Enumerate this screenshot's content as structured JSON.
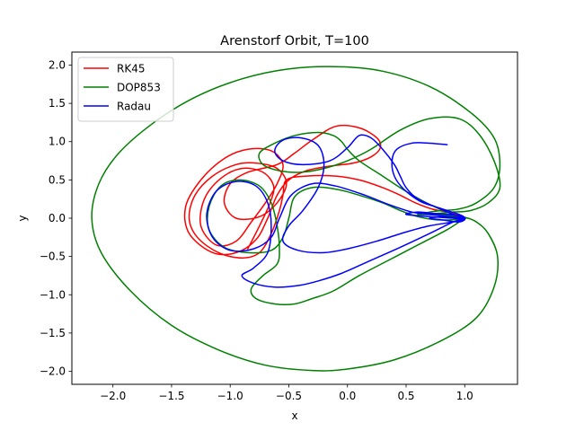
{
  "chart_data": {
    "type": "line",
    "title": "Arenstorf Orbit, T=100",
    "xlabel": "x",
    "ylabel": "y",
    "xlim": [
      -2.35,
      1.45
    ],
    "ylim": [
      -2.17,
      2.17
    ],
    "xticks": [
      -2.0,
      -1.5,
      -1.0,
      -0.5,
      0.0,
      0.5,
      1.0
    ],
    "yticks": [
      -2.0,
      -1.5,
      -1.0,
      -0.5,
      0.0,
      0.5,
      1.0,
      1.5,
      2.0
    ],
    "xtick_labels": [
      "−2.0",
      "−1.5",
      "−1.0",
      "−0.5",
      "0.0",
      "0.5",
      "1.0"
    ],
    "ytick_labels": [
      "−2.0",
      "−1.5",
      "−1.0",
      "−0.5",
      "0.0",
      "0.5",
      "1.0",
      "1.5",
      "2.0"
    ],
    "grid": false,
    "legend_position": "top-left",
    "series": [
      {
        "name": "RK45",
        "color": "#ff0000",
        "points": [
          [
            0.994,
            0.0
          ],
          [
            0.98,
            0.03
          ],
          [
            0.93,
            0.05
          ],
          [
            0.85,
            0.08
          ],
          [
            0.72,
            0.12
          ],
          [
            0.58,
            0.2
          ],
          [
            0.45,
            0.3
          ],
          [
            0.3,
            0.4
          ],
          [
            0.1,
            0.5
          ],
          [
            -0.1,
            0.55
          ],
          [
            -0.35,
            0.55
          ],
          [
            -0.52,
            0.5
          ],
          [
            -0.55,
            0.3
          ],
          [
            -0.58,
            0.1
          ],
          [
            -0.65,
            -0.2
          ],
          [
            -0.75,
            -0.45
          ],
          [
            -0.9,
            -0.52
          ],
          [
            -1.1,
            -0.45
          ],
          [
            -1.28,
            -0.25
          ],
          [
            -1.35,
            0.0
          ],
          [
            -1.3,
            0.3
          ],
          [
            -1.15,
            0.55
          ],
          [
            -0.95,
            0.7
          ],
          [
            -0.78,
            0.72
          ],
          [
            -0.6,
            0.65
          ],
          [
            -0.52,
            0.45
          ],
          [
            -0.6,
            0.2
          ],
          [
            -0.75,
            0.02
          ],
          [
            -0.95,
            0.0
          ],
          [
            -1.05,
            0.2
          ],
          [
            -1.0,
            0.45
          ],
          [
            -0.85,
            0.6
          ],
          [
            -0.6,
            0.7
          ],
          [
            -0.45,
            0.85
          ],
          [
            -0.3,
            1.02
          ],
          [
            -0.1,
            1.2
          ],
          [
            0.1,
            1.18
          ],
          [
            0.25,
            1.05
          ],
          [
            0.28,
            0.92
          ],
          [
            0.2,
            0.8
          ],
          [
            0.05,
            0.72
          ],
          [
            -0.15,
            0.68
          ],
          [
            -0.35,
            0.62
          ],
          [
            -0.5,
            0.5
          ],
          [
            -0.6,
            0.3
          ],
          [
            -0.68,
            0.0
          ],
          [
            -0.78,
            -0.28
          ],
          [
            -0.95,
            -0.45
          ],
          [
            -1.15,
            -0.45
          ],
          [
            -1.35,
            -0.2
          ],
          [
            -1.38,
            0.15
          ],
          [
            -1.25,
            0.5
          ],
          [
            -1.05,
            0.78
          ],
          [
            -0.85,
            0.9
          ],
          [
            -0.65,
            0.88
          ],
          [
            -0.55,
            0.7
          ],
          [
            -0.6,
            0.45
          ],
          [
            -0.7,
            0.2
          ],
          [
            -0.82,
            -0.05
          ],
          [
            -0.95,
            -0.3
          ],
          [
            -1.12,
            -0.35
          ],
          [
            -1.25,
            -0.1
          ],
          [
            -1.22,
            0.25
          ],
          [
            -1.08,
            0.52
          ],
          [
            -0.9,
            0.65
          ],
          [
            -0.72,
            0.6
          ],
          [
            -0.63,
            0.42
          ],
          [
            -0.66,
            0.2
          ],
          [
            -0.75,
            -0.1
          ],
          [
            -0.85,
            -0.4
          ]
        ]
      },
      {
        "name": "DOP853",
        "color": "#008000",
        "points": [
          [
            0.994,
            0.0
          ],
          [
            0.9,
            -0.02
          ],
          [
            0.75,
            -0.02
          ],
          [
            0.6,
            0.02
          ],
          [
            0.45,
            0.1
          ],
          [
            0.3,
            0.2
          ],
          [
            0.1,
            0.3
          ],
          [
            -0.1,
            0.38
          ],
          [
            -0.3,
            0.4
          ],
          [
            -0.45,
            0.28
          ],
          [
            -0.5,
            0.0
          ],
          [
            -0.55,
            -0.25
          ],
          [
            -0.65,
            -0.42
          ],
          [
            -0.85,
            -0.45
          ],
          [
            -1.05,
            -0.38
          ],
          [
            -1.18,
            -0.15
          ],
          [
            -1.18,
            0.15
          ],
          [
            -1.08,
            0.42
          ],
          [
            -0.92,
            0.5
          ],
          [
            -0.75,
            0.42
          ],
          [
            -0.65,
            0.2
          ],
          [
            -0.6,
            -0.1
          ],
          [
            -0.58,
            -0.4
          ],
          [
            -0.6,
            -0.6
          ],
          [
            -0.72,
            -0.75
          ],
          [
            -0.82,
            -0.92
          ],
          [
            -0.78,
            -1.05
          ],
          [
            -0.62,
            -1.12
          ],
          [
            -0.45,
            -1.12
          ],
          [
            -0.3,
            -1.05
          ],
          [
            -0.12,
            -0.95
          ],
          [
            0.1,
            -0.75
          ],
          [
            0.35,
            -0.55
          ],
          [
            0.6,
            -0.35
          ],
          [
            0.85,
            -0.15
          ],
          [
            0.98,
            -0.02
          ],
          [
            1.0,
            0.0
          ],
          [
            0.9,
            0.05
          ],
          [
            0.7,
            0.18
          ],
          [
            0.5,
            0.35
          ],
          [
            0.3,
            0.55
          ],
          [
            0.1,
            0.75
          ],
          [
            0.0,
            0.9
          ],
          [
            -0.05,
            1.0
          ],
          [
            -0.12,
            1.08
          ],
          [
            -0.25,
            1.12
          ],
          [
            -0.45,
            1.08
          ],
          [
            -0.62,
            0.98
          ],
          [
            -0.75,
            0.85
          ],
          [
            -0.72,
            0.7
          ],
          [
            -0.58,
            0.62
          ],
          [
            -0.4,
            0.6
          ],
          [
            -0.2,
            0.65
          ],
          [
            0.0,
            0.75
          ],
          [
            0.2,
            0.9
          ],
          [
            0.45,
            1.15
          ],
          [
            0.7,
            1.3
          ],
          [
            0.95,
            1.3
          ],
          [
            1.12,
            1.1
          ],
          [
            1.25,
            0.75
          ],
          [
            1.3,
            0.4
          ],
          [
            1.2,
            0.2
          ],
          [
            1.05,
            0.1
          ],
          [
            0.9,
            0.08
          ],
          [
            0.75,
            0.06
          ],
          [
            0.6,
            0.05
          ],
          [
            0.85,
            0.04
          ],
          [
            1.0,
            0.01
          ],
          [
            1.1,
            -0.05
          ],
          [
            1.2,
            -0.2
          ],
          [
            1.28,
            -0.5
          ],
          [
            1.25,
            -0.9
          ],
          [
            1.1,
            -1.3
          ],
          [
            0.8,
            -1.6
          ],
          [
            0.4,
            -1.85
          ],
          [
            0.0,
            -1.97
          ],
          [
            -0.3,
            -1.99
          ],
          [
            -0.7,
            -1.92
          ],
          [
            -1.1,
            -1.72
          ],
          [
            -1.5,
            -1.4
          ],
          [
            -1.85,
            -0.95
          ],
          [
            -2.1,
            -0.45
          ],
          [
            -2.18,
            0.0
          ],
          [
            -2.12,
            0.45
          ],
          [
            -1.95,
            0.85
          ],
          [
            -1.65,
            1.25
          ],
          [
            -1.3,
            1.58
          ],
          [
            -0.9,
            1.82
          ],
          [
            -0.5,
            1.95
          ],
          [
            -0.1,
            1.98
          ],
          [
            0.3,
            1.92
          ],
          [
            0.7,
            1.72
          ],
          [
            1.05,
            1.38
          ],
          [
            1.25,
            1.05
          ],
          [
            1.3,
            0.7
          ],
          [
            1.25,
            0.4
          ],
          [
            1.1,
            0.2
          ],
          [
            0.95,
            0.12
          ],
          [
            0.8,
            0.1
          ],
          [
            0.7,
            0.08
          ],
          [
            0.65,
            0.06
          ],
          [
            0.7,
            0.06
          ],
          [
            0.85,
            0.03
          ],
          [
            0.95,
            0.01
          ],
          [
            1.0,
            0.0
          ]
        ]
      },
      {
        "name": "Radau",
        "color": "#0000ff",
        "points": [
          [
            0.994,
            0.0
          ],
          [
            0.85,
            0.02
          ],
          [
            0.7,
            0.05
          ],
          [
            0.55,
            0.08
          ],
          [
            0.35,
            0.18
          ],
          [
            0.15,
            0.3
          ],
          [
            -0.1,
            0.42
          ],
          [
            -0.3,
            0.45
          ],
          [
            -0.48,
            0.3
          ],
          [
            -0.58,
            0.0
          ],
          [
            -0.65,
            -0.25
          ],
          [
            -0.8,
            -0.4
          ],
          [
            -1.0,
            -0.42
          ],
          [
            -1.15,
            -0.25
          ],
          [
            -1.2,
            0.05
          ],
          [
            -1.12,
            0.35
          ],
          [
            -0.95,
            0.48
          ],
          [
            -0.78,
            0.42
          ],
          [
            -0.68,
            0.2
          ],
          [
            -0.65,
            -0.1
          ],
          [
            -0.68,
            -0.45
          ],
          [
            -0.8,
            -0.65
          ],
          [
            -0.9,
            -0.75
          ],
          [
            -0.8,
            -0.85
          ],
          [
            -0.62,
            -0.9
          ],
          [
            -0.42,
            -0.88
          ],
          [
            -0.25,
            -0.82
          ],
          [
            -0.05,
            -0.72
          ],
          [
            0.2,
            -0.55
          ],
          [
            0.45,
            -0.38
          ],
          [
            0.7,
            -0.2
          ],
          [
            0.9,
            -0.05
          ],
          [
            1.0,
            0.0
          ],
          [
            0.92,
            0.04
          ],
          [
            0.75,
            0.06
          ],
          [
            0.6,
            0.08
          ],
          [
            0.5,
            0.05
          ],
          [
            0.7,
            0.02
          ],
          [
            0.9,
            0.0
          ],
          [
            1.0,
            -0.02
          ],
          [
            0.9,
            -0.05
          ],
          [
            0.7,
            -0.1
          ],
          [
            0.5,
            -0.18
          ],
          [
            0.25,
            -0.3
          ],
          [
            0.0,
            -0.4
          ],
          [
            -0.2,
            -0.45
          ],
          [
            -0.42,
            -0.42
          ],
          [
            -0.55,
            -0.3
          ],
          [
            -0.5,
            -0.1
          ],
          [
            -0.38,
            0.1
          ],
          [
            -0.25,
            0.4
          ],
          [
            -0.2,
            0.7
          ],
          [
            -0.25,
            0.95
          ],
          [
            -0.4,
            1.05
          ],
          [
            -0.55,
            1.02
          ],
          [
            -0.62,
            0.88
          ],
          [
            -0.55,
            0.75
          ],
          [
            -0.38,
            0.7
          ],
          [
            -0.15,
            0.75
          ],
          [
            0.0,
            0.92
          ],
          [
            0.1,
            1.08
          ],
          [
            0.2,
            1.05
          ],
          [
            0.3,
            0.9
          ],
          [
            0.4,
            0.7
          ],
          [
            0.45,
            0.55
          ],
          [
            0.5,
            0.4
          ],
          [
            0.6,
            0.25
          ],
          [
            0.75,
            0.15
          ],
          [
            0.9,
            0.05
          ],
          [
            1.0,
            0.0
          ],
          [
            0.95,
            -0.05
          ],
          [
            0.8,
            -0.02
          ],
          [
            0.7,
            0.0
          ],
          [
            0.85,
            0.02
          ],
          [
            1.0,
            0.0
          ],
          [
            0.95,
            0.05
          ],
          [
            0.85,
            0.1
          ],
          [
            0.75,
            0.15
          ],
          [
            0.62,
            0.22
          ],
          [
            0.48,
            0.38
          ],
          [
            0.4,
            0.55
          ],
          [
            0.38,
            0.75
          ],
          [
            0.42,
            0.9
          ],
          [
            0.55,
            0.98
          ],
          [
            0.7,
            0.98
          ],
          [
            0.85,
            0.96
          ]
        ]
      }
    ]
  }
}
